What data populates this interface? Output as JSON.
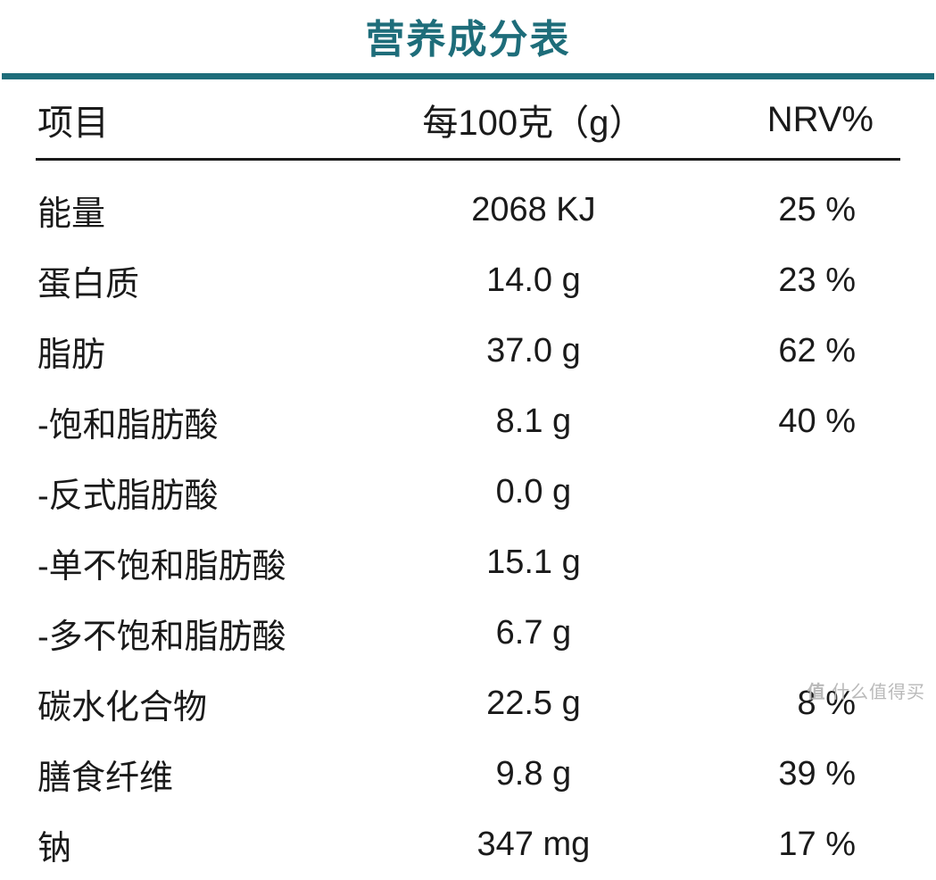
{
  "title": "营养成分表",
  "columns": {
    "item": "项目",
    "per": "每100克（g）",
    "nrv": "NRV%"
  },
  "rows": [
    {
      "item": "能量",
      "per": "2068 KJ",
      "nrv": "25 %"
    },
    {
      "item": "蛋白质",
      "per": "14.0 g",
      "nrv": "23 %"
    },
    {
      "item": "脂肪",
      "per": "37.0 g",
      "nrv": "62 %"
    },
    {
      "item": "-饱和脂肪酸",
      "per": "8.1 g",
      "nrv": "40 %"
    },
    {
      "item": "-反式脂肪酸",
      "per": "0.0 g",
      "nrv": ""
    },
    {
      "item": "-单不饱和脂肪酸",
      "per": "15.1 g",
      "nrv": ""
    },
    {
      "item": "-多不饱和脂肪酸",
      "per": "6.7 g",
      "nrv": ""
    },
    {
      "item": "碳水化合物",
      "per": "22.5 g",
      "nrv": "8 %"
    },
    {
      "item": "膳食纤维",
      "per": "9.8 g",
      "nrv": "39 %"
    },
    {
      "item": "钠",
      "per": "347 mg",
      "nrv": "17 %"
    }
  ],
  "watermark": {
    "prefix": "值 ",
    "text": "什么值得买"
  },
  "style": {
    "title_color": "#1e6d7a",
    "title_fontsize": 44,
    "rule_color": "#1e6d7a",
    "rule_thickness": 7,
    "thin_rule_color": "#1a1a1a",
    "thin_rule_thickness": 3,
    "header_fontsize": 40,
    "body_fontsize": 38,
    "text_color": "#1a1a1a",
    "background_color": "#ffffff",
    "watermark_color": "#b9b9b9",
    "watermark_fontsize": 20
  }
}
